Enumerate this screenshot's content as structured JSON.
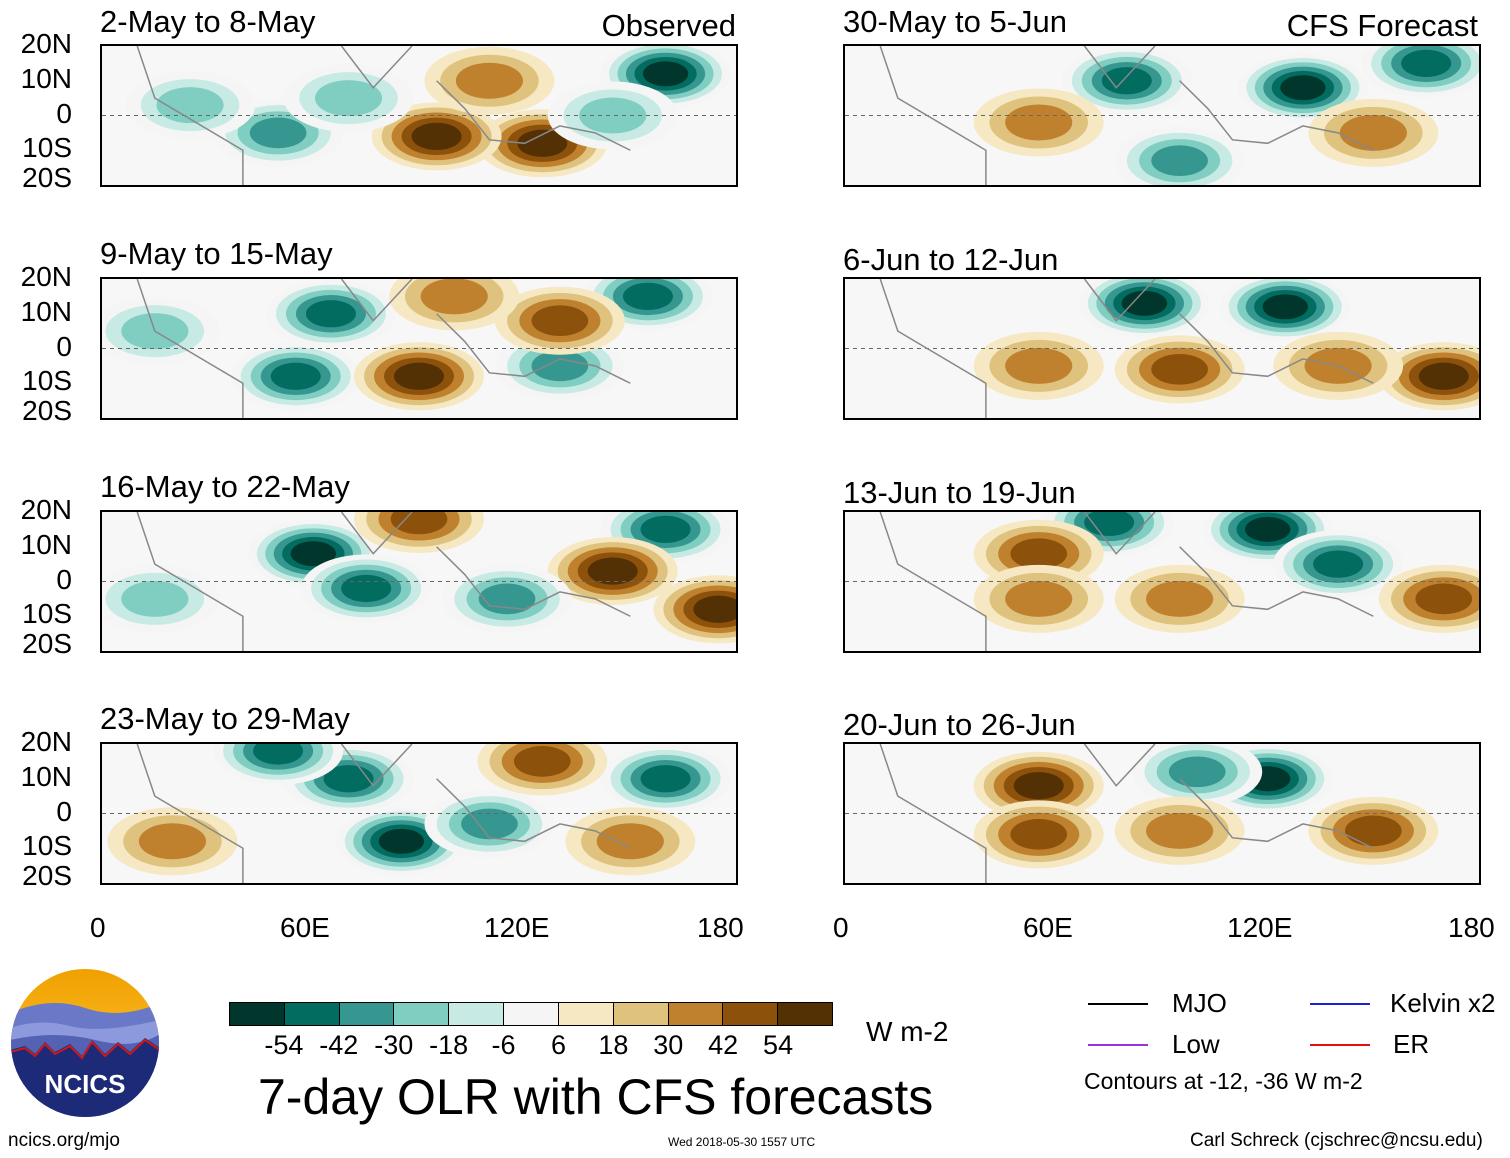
{
  "header": {
    "observed_label": "Observed",
    "forecast_label": "CFS Forecast"
  },
  "lat_labels": [
    "20N",
    "10N",
    "0",
    "10S",
    "20S"
  ],
  "lon_labels": [
    "0",
    "60E",
    "120E",
    "180"
  ],
  "colorbar": {
    "labels": [
      "-54",
      "-42",
      "-30",
      "-18",
      "-6",
      "6",
      "18",
      "30",
      "42",
      "54"
    ],
    "colors": [
      "#01362c",
      "#016c5f",
      "#35978f",
      "#80cdc1",
      "#c7eae5",
      "#f5f5f5",
      "#f6e8c3",
      "#dfc27d",
      "#bf812d",
      "#8c510a",
      "#543005"
    ],
    "units": "W m-2"
  },
  "title": "7-day OLR with CFS forecasts",
  "legend": {
    "mjo": "MJO",
    "kelvin": "Kelvin x2",
    "low": "Low",
    "er": "ER",
    "note": "Contours at -12, -36 W m-2",
    "colors": {
      "mjo": "#000000",
      "kelvin": "#1f1fd6",
      "low": "#9933dd",
      "er": "#e01010"
    }
  },
  "footer": {
    "url": "ncics.org/mjo",
    "timestamp": "Wed 2018-05-30 1557 UTC",
    "author": "Carl Schreck (cjschrec@ncsu.edu)",
    "logo_text": "NCICS"
  },
  "chart_data": [
    {
      "type": "heatmap",
      "title": "2-May to 8-May",
      "source": "Observed",
      "x_range": [
        0,
        180
      ],
      "y_range": [
        -20,
        20
      ],
      "blobs": [
        {
          "lon": 160,
          "lat": 12,
          "value": -54
        },
        {
          "lon": 125,
          "lat": -8,
          "value": 42
        },
        {
          "lon": 95,
          "lat": -6,
          "value": 42
        },
        {
          "lon": 50,
          "lat": -5,
          "value": -30
        },
        {
          "lon": 70,
          "lat": 5,
          "value": -18
        },
        {
          "lon": 25,
          "lat": 3,
          "value": -18
        },
        {
          "lon": 110,
          "lat": 10,
          "value": 18
        },
        {
          "lon": 145,
          "lat": 0,
          "value": -18
        }
      ]
    },
    {
      "type": "heatmap",
      "title": "9-May to 15-May",
      "source": "Observed",
      "x_range": [
        0,
        180
      ],
      "y_range": [
        -20,
        20
      ],
      "blobs": [
        {
          "lon": 155,
          "lat": 15,
          "value": -42
        },
        {
          "lon": 65,
          "lat": 10,
          "value": -42
        },
        {
          "lon": 55,
          "lat": -8,
          "value": -42
        },
        {
          "lon": 90,
          "lat": -8,
          "value": 42
        },
        {
          "lon": 130,
          "lat": -5,
          "value": -30
        },
        {
          "lon": 15,
          "lat": 5,
          "value": -18
        },
        {
          "lon": 130,
          "lat": 8,
          "value": 30
        },
        {
          "lon": 100,
          "lat": 15,
          "value": 18
        }
      ]
    },
    {
      "type": "heatmap",
      "title": "16-May to 22-May",
      "source": "Observed",
      "x_range": [
        0,
        180
      ],
      "y_range": [
        -20,
        20
      ],
      "blobs": [
        {
          "lon": 60,
          "lat": 8,
          "value": -54
        },
        {
          "lon": 75,
          "lat": -2,
          "value": -42
        },
        {
          "lon": 160,
          "lat": 15,
          "value": -42
        },
        {
          "lon": 145,
          "lat": 3,
          "value": 42
        },
        {
          "lon": 115,
          "lat": -5,
          "value": -30
        },
        {
          "lon": 175,
          "lat": -8,
          "value": 42
        },
        {
          "lon": 90,
          "lat": 18,
          "value": 30
        },
        {
          "lon": 15,
          "lat": -5,
          "value": -18
        }
      ]
    },
    {
      "type": "heatmap",
      "title": "23-May to 29-May",
      "source": "Observed",
      "x_range": [
        0,
        180
      ],
      "y_range": [
        -20,
        20
      ],
      "blobs": [
        {
          "lon": 85,
          "lat": -8,
          "value": -54
        },
        {
          "lon": 70,
          "lat": 10,
          "value": -42
        },
        {
          "lon": 50,
          "lat": 18,
          "value": -42
        },
        {
          "lon": 160,
          "lat": 10,
          "value": -42
        },
        {
          "lon": 125,
          "lat": 15,
          "value": 30
        },
        {
          "lon": 150,
          "lat": -8,
          "value": 18
        },
        {
          "lon": 110,
          "lat": -3,
          "value": -30
        },
        {
          "lon": 20,
          "lat": -8,
          "value": 18
        }
      ]
    },
    {
      "type": "heatmap",
      "title": "30-May to 5-Jun",
      "source": "CFS Forecast",
      "x_range": [
        0,
        180
      ],
      "y_range": [
        -20,
        20
      ],
      "blobs": [
        {
          "lon": 130,
          "lat": 8,
          "value": -54
        },
        {
          "lon": 80,
          "lat": 10,
          "value": -42
        },
        {
          "lon": 165,
          "lat": 15,
          "value": -42
        },
        {
          "lon": 95,
          "lat": -13,
          "value": -30
        },
        {
          "lon": 55,
          "lat": -2,
          "value": 18
        },
        {
          "lon": 150,
          "lat": -5,
          "value": 18
        }
      ]
    },
    {
      "type": "heatmap",
      "title": "6-Jun to 12-Jun",
      "source": "CFS Forecast",
      "x_range": [
        0,
        180
      ],
      "y_range": [
        -20,
        20
      ],
      "blobs": [
        {
          "lon": 85,
          "lat": 13,
          "value": -54
        },
        {
          "lon": 125,
          "lat": 12,
          "value": -54
        },
        {
          "lon": 95,
          "lat": -6,
          "value": 30
        },
        {
          "lon": 170,
          "lat": -8,
          "value": 42
        },
        {
          "lon": 140,
          "lat": -5,
          "value": 18
        },
        {
          "lon": 55,
          "lat": -5,
          "value": 18
        }
      ]
    },
    {
      "type": "heatmap",
      "title": "13-Jun to 19-Jun",
      "source": "CFS Forecast",
      "x_range": [
        0,
        180
      ],
      "y_range": [
        -20,
        20
      ],
      "blobs": [
        {
          "lon": 120,
          "lat": 15,
          "value": -54
        },
        {
          "lon": 140,
          "lat": 5,
          "value": -42
        },
        {
          "lon": 75,
          "lat": 17,
          "value": -42
        },
        {
          "lon": 55,
          "lat": 8,
          "value": 30
        },
        {
          "lon": 170,
          "lat": -5,
          "value": 30
        },
        {
          "lon": 95,
          "lat": -5,
          "value": 18
        },
        {
          "lon": 55,
          "lat": -5,
          "value": 18
        }
      ]
    },
    {
      "type": "heatmap",
      "title": "20-Jun to 26-Jun",
      "source": "CFS Forecast",
      "x_range": [
        0,
        180
      ],
      "y_range": [
        -20,
        20
      ],
      "blobs": [
        {
          "lon": 55,
          "lat": 8,
          "value": 42
        },
        {
          "lon": 55,
          "lat": -6,
          "value": 30
        },
        {
          "lon": 120,
          "lat": 10,
          "value": -54
        },
        {
          "lon": 100,
          "lat": 12,
          "value": -30
        },
        {
          "lon": 150,
          "lat": -5,
          "value": 30
        },
        {
          "lon": 95,
          "lat": -5,
          "value": 18
        }
      ]
    }
  ]
}
